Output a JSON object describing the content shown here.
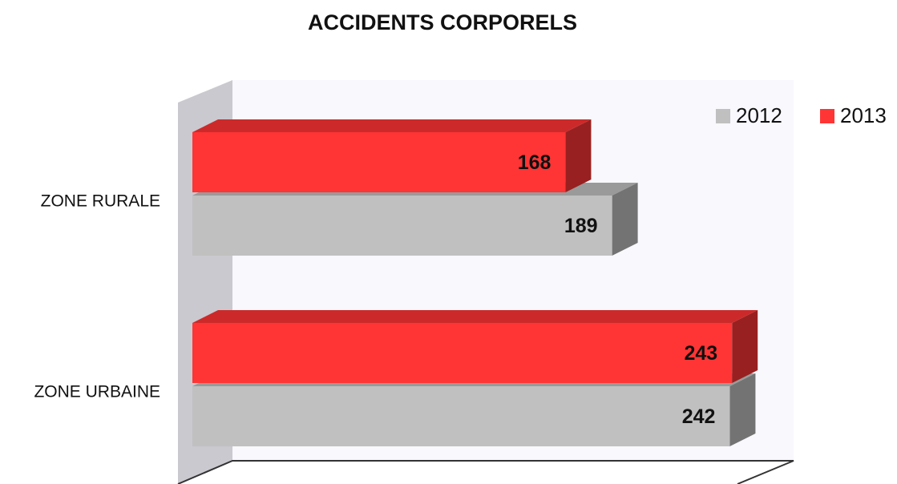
{
  "chart_data": {
    "type": "bar3d_horizontal",
    "title": "ACCIDENTS CORPORELS",
    "categories": [
      "ZONE RURALE",
      "ZONE URBAINE"
    ],
    "series": [
      {
        "name": "2012",
        "color": "#c0c0c0",
        "values": [
          189,
          242
        ]
      },
      {
        "name": "2013",
        "color": "#ff3535",
        "values": [
          168,
          243
        ]
      }
    ],
    "xlim": [
      0,
      270
    ],
    "legend": "top-right"
  }
}
